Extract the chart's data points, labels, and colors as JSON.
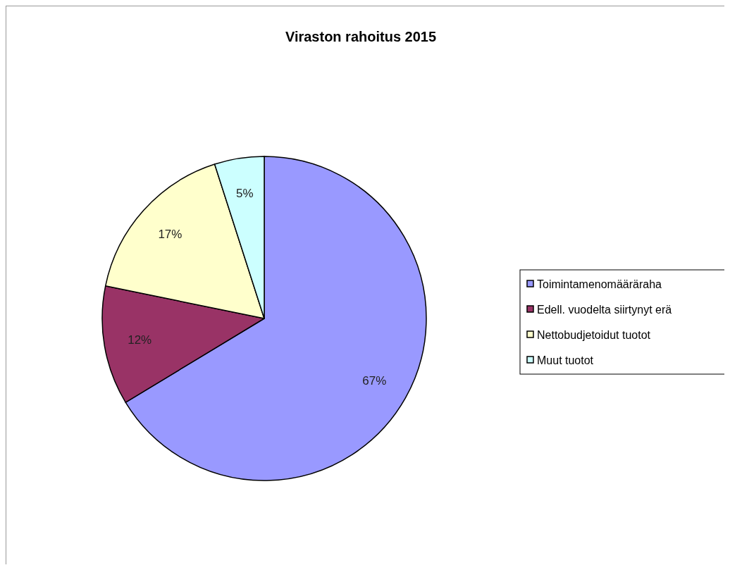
{
  "chart_data": {
    "type": "pie",
    "title": "Viraston rahoitus 2015",
    "categories": [
      "Toimintamenomääräraha",
      "Edell. vuodelta siirtynyt erä",
      "Nettobudjetoidut tuotot",
      "Muut tuotot"
    ],
    "values": [
      67,
      12,
      17,
      5
    ],
    "colors": [
      "#9999ff",
      "#993366",
      "#ffffcc",
      "#ccffff"
    ],
    "value_labels": [
      "67%",
      "12%",
      "17%",
      "5%"
    ],
    "legend": "right"
  }
}
